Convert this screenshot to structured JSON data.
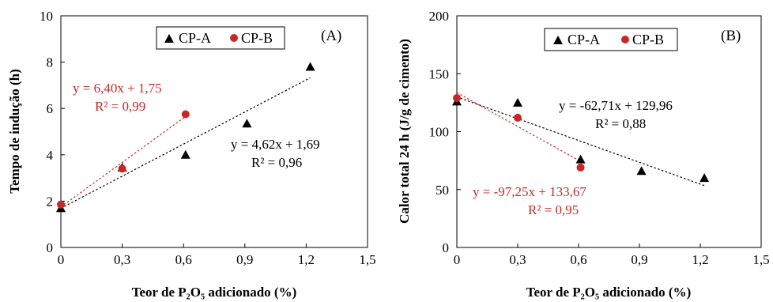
{
  "colors": {
    "cp_a": "#000000",
    "cp_b": "#c62828"
  },
  "chart_data": [
    {
      "type": "scatter",
      "panel_label": "(A)",
      "xlabel": "Teor de P₂O₅ adicionado (%)",
      "ylabel": "Tempo de indução (h)",
      "xlim": [
        0,
        1.5
      ],
      "ylim": [
        0,
        10
      ],
      "xticks": [
        0,
        0.3,
        0.6,
        0.9,
        1.2,
        1.5
      ],
      "xtick_labels": [
        "0",
        "0,3",
        "0,6",
        "0,9",
        "1,2",
        "1,5"
      ],
      "yticks": [
        0,
        2,
        4,
        6,
        8,
        10
      ],
      "ytick_labels": [
        "0",
        "2",
        "4",
        "6",
        "8",
        "10"
      ],
      "grid": false,
      "legend_position": "top-center",
      "series": [
        {
          "name": "CP-A",
          "marker": "triangle",
          "color": "#000000",
          "x": [
            0,
            0.3,
            0.61,
            0.91,
            1.22
          ],
          "y": [
            1.7,
            3.45,
            4.0,
            5.35,
            7.8
          ],
          "fit": {
            "slope": 4.62,
            "intercept": 1.69,
            "x_range": [
              0,
              1.22
            ]
          },
          "equation": "y = 4,62x + 1,69",
          "r2": "R² = 0,96"
        },
        {
          "name": "CP-B",
          "marker": "circle",
          "color": "#c62828",
          "x": [
            0,
            0.3,
            0.61
          ],
          "y": [
            1.85,
            3.4,
            5.75
          ],
          "fit": {
            "slope": 6.4,
            "intercept": 1.75,
            "x_range": [
              0,
              0.61
            ]
          },
          "equation": "y = 6,40x + 1,75",
          "r2": "R² = 0,99"
        }
      ]
    },
    {
      "type": "scatter",
      "panel_label": "(B)",
      "xlabel": "Teor de P₂O₅ adicionado (%)",
      "ylabel": "Calor total 24 h (J/g de cimento)",
      "xlim": [
        0,
        1.5
      ],
      "ylim": [
        0,
        200
      ],
      "xticks": [
        0,
        0.3,
        0.6,
        0.9,
        1.2,
        1.5
      ],
      "xtick_labels": [
        "0",
        "0,3",
        "0,6",
        "0,9",
        "1,2",
        "1,5"
      ],
      "yticks": [
        0,
        50,
        100,
        150,
        200
      ],
      "ytick_labels": [
        "0",
        "50",
        "100",
        "150",
        "200"
      ],
      "grid": false,
      "legend_position": "top-center",
      "series": [
        {
          "name": "CP-A",
          "marker": "triangle",
          "color": "#000000",
          "x": [
            0,
            0.3,
            0.61,
            0.91,
            1.22
          ],
          "y": [
            126,
            125,
            76,
            66,
            60
          ],
          "fit": {
            "slope": -62.71,
            "intercept": 129.96,
            "x_range": [
              0,
              1.22
            ]
          },
          "equation": "y = -62,71x + 129,96",
          "r2": "R² = 0,88"
        },
        {
          "name": "CP-B",
          "marker": "circle",
          "color": "#c62828",
          "x": [
            0,
            0.3,
            0.61
          ],
          "y": [
            129,
            112,
            69
          ],
          "fit": {
            "slope": -97.25,
            "intercept": 133.67,
            "x_range": [
              0,
              0.61
            ]
          },
          "equation": "y = -97,25x + 133,67",
          "r2": "R² = 0,95"
        }
      ]
    }
  ]
}
